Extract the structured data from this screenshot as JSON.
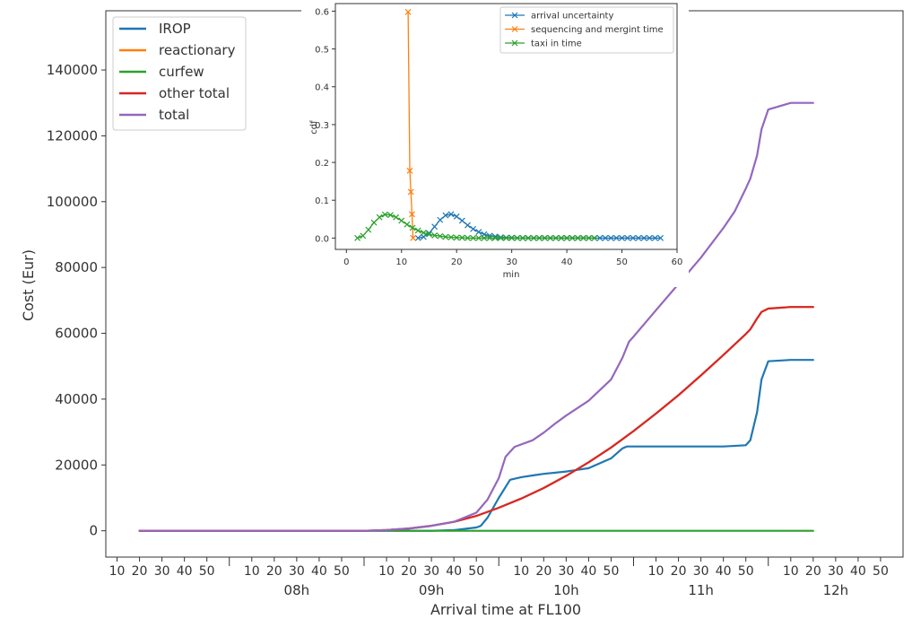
{
  "chart_data": [
    {
      "type": "line",
      "xlabel": "Arrival time at FL100",
      "ylabel": "Cost (Eur)",
      "x_unit": "minutes",
      "xlim": [
        425,
        780
      ],
      "ylim": [
        -8000,
        158000
      ],
      "grid": false,
      "legend_position": "top-left",
      "yticks": [
        0,
        20000,
        40000,
        60000,
        80000,
        100000,
        120000,
        140000
      ],
      "ytick_labels": [
        "0",
        "20000",
        "40000",
        "60000",
        "80000",
        "100000",
        "120000",
        "140000"
      ],
      "minor_ticks": [
        430,
        440,
        450,
        460,
        470,
        490,
        500,
        510,
        520,
        530,
        550,
        560,
        570,
        580,
        590,
        610,
        620,
        630,
        640,
        650,
        670,
        680,
        690,
        700,
        710,
        730,
        740,
        750,
        760,
        770
      ],
      "minor_tick_labels": [
        "10",
        "20",
        "30",
        "40",
        "50",
        "10",
        "20",
        "30",
        "40",
        "50",
        "10",
        "20",
        "30",
        "40",
        "50",
        "10",
        "20",
        "30",
        "40",
        "50",
        "10",
        "20",
        "30",
        "40",
        "50",
        "10",
        "20",
        "30",
        "40",
        "50"
      ],
      "major_ticks": [
        480,
        540,
        600,
        660,
        720
      ],
      "major_tick_labels": [
        "08h",
        "09h",
        "10h",
        "11h",
        "12h"
      ],
      "series": [
        {
          "name": "IROP",
          "color": "#1f77b4",
          "x": [
            440,
            540,
            570,
            580,
            590,
            592,
            595,
            600,
            605,
            610,
            615,
            620,
            630,
            640,
            650,
            655,
            657,
            660,
            680,
            700,
            710,
            712,
            715,
            717,
            720,
            730,
            740
          ],
          "y": [
            0,
            0,
            0,
            200,
            1000,
            1500,
            4000,
            10000,
            15500,
            16300,
            16800,
            17300,
            18000,
            19000,
            22000,
            25000,
            25600,
            25600,
            25600,
            25600,
            26000,
            27500,
            36000,
            46000,
            51500,
            51900,
            51900
          ]
        },
        {
          "name": "reactionary",
          "color": "#ff7f0e",
          "x": [
            440,
            540,
            550,
            560,
            570,
            580,
            590,
            600,
            610,
            620,
            630,
            640,
            650,
            660,
            670,
            680,
            690,
            700,
            710,
            712,
            715,
            717,
            720,
            730,
            740
          ],
          "y": [
            0,
            0,
            200,
            700,
            1500,
            2700,
            4500,
            7000,
            9800,
            13000,
            16700,
            20800,
            25300,
            30300,
            35600,
            41200,
            47200,
            53400,
            59800,
            61200,
            64500,
            66500,
            67500,
            68000,
            68000
          ]
        },
        {
          "name": "curfew",
          "color": "#2ca02c",
          "x": [
            440,
            740
          ],
          "y": [
            0,
            0
          ]
        },
        {
          "name": "other total",
          "color": "#d62728",
          "x": [
            440,
            540,
            550,
            560,
            570,
            580,
            590,
            600,
            610,
            620,
            630,
            640,
            650,
            660,
            670,
            680,
            690,
            700,
            710,
            712,
            715,
            717,
            720,
            730,
            740
          ],
          "y": [
            0,
            0,
            200,
            700,
            1500,
            2700,
            4500,
            7000,
            9800,
            13000,
            16700,
            20800,
            25300,
            30300,
            35600,
            41200,
            47200,
            53400,
            59800,
            61200,
            64500,
            66500,
            67500,
            68000,
            68000
          ]
        },
        {
          "name": "total",
          "color": "#9467bd",
          "x": [
            440,
            540,
            550,
            560,
            570,
            580,
            590,
            595,
            600,
            603,
            607,
            615,
            620,
            625,
            630,
            640,
            650,
            655,
            658,
            660,
            670,
            680,
            690,
            700,
            705,
            710,
            712,
            715,
            717,
            720,
            730,
            740
          ],
          "y": [
            0,
            0,
            200,
            700,
            1500,
            2700,
            5500,
            9500,
            16000,
            22500,
            25500,
            27500,
            29800,
            32500,
            35000,
            39500,
            46000,
            52500,
            57500,
            59000,
            67000,
            75000,
            83000,
            92000,
            97000,
            104000,
            107000,
            114000,
            122000,
            128000,
            130000,
            130000
          ]
        }
      ]
    },
    {
      "type": "line",
      "xlabel": "min",
      "ylabel": "cdf",
      "xlim": [
        -2,
        60
      ],
      "ylim": [
        -0.03,
        0.62
      ],
      "grid": false,
      "legend_position": "top-right",
      "xticks": [
        0,
        10,
        20,
        30,
        40,
        50,
        60
      ],
      "xtick_labels": [
        "0",
        "10",
        "20",
        "30",
        "40",
        "50",
        "60"
      ],
      "yticks": [
        0.0,
        0.1,
        0.2,
        0.3,
        0.4,
        0.5,
        0.6
      ],
      "ytick_labels": [
        "0.0",
        "0.1",
        "0.2",
        "0.3",
        "0.4",
        "0.5",
        "0.6"
      ],
      "series": [
        {
          "name": "arrival uncertainty",
          "color": "#1f77b4",
          "marker": "x",
          "x": [
            13,
            14,
            15,
            16,
            17,
            18,
            19,
            20,
            21,
            22,
            23,
            24,
            25,
            26,
            27,
            28,
            29,
            30,
            31,
            32,
            33,
            34,
            35,
            36,
            37,
            38,
            39,
            40,
            41,
            42,
            43,
            44,
            45,
            46,
            47,
            48,
            49,
            50,
            51,
            52,
            53,
            54,
            55,
            56,
            57
          ],
          "y": [
            0.0,
            0.003,
            0.013,
            0.03,
            0.048,
            0.06,
            0.063,
            0.057,
            0.046,
            0.034,
            0.024,
            0.016,
            0.01,
            0.006,
            0.004,
            0.002,
            0.001,
            0.001,
            0.0,
            0.0,
            0.0,
            0.0,
            0.0,
            0.0,
            0.0,
            0.0,
            0.0,
            0.0,
            0.0,
            0.0,
            0.0,
            0.0,
            0.0,
            0.0,
            0.0,
            0.0,
            0.0,
            0.0,
            0.0,
            0.0,
            0.0,
            0.0,
            0.0,
            0.0,
            0.0
          ]
        },
        {
          "name": "sequencing and mergint time",
          "color": "#ff7f0e",
          "marker": "x",
          "x": [
            11.2,
            11.5,
            11.7,
            11.9,
            12.1
          ],
          "y": [
            0.598,
            0.178,
            0.122,
            0.063,
            0.0
          ]
        },
        {
          "name": "taxi in time",
          "color": "#2ca02c",
          "marker": "x",
          "x": [
            2,
            3,
            4,
            5,
            6,
            7,
            8,
            9,
            10,
            11,
            12,
            13,
            14,
            15,
            16,
            17,
            18,
            19,
            20,
            21,
            22,
            23,
            24,
            25,
            26,
            27,
            28,
            29,
            30,
            31,
            32,
            33,
            34,
            35,
            36,
            37,
            38,
            39,
            40,
            41,
            42,
            43,
            44,
            45
          ],
          "y": [
            0.0,
            0.006,
            0.022,
            0.041,
            0.055,
            0.062,
            0.061,
            0.055,
            0.046,
            0.036,
            0.027,
            0.02,
            0.014,
            0.01,
            0.007,
            0.005,
            0.003,
            0.002,
            0.001,
            0.001,
            0.0,
            0.0,
            0.0,
            0.0,
            0.0,
            0.0,
            0.0,
            0.0,
            0.0,
            0.0,
            0.0,
            0.0,
            0.0,
            0.0,
            0.0,
            0.0,
            0.0,
            0.0,
            0.0,
            0.0,
            0.0,
            0.0,
            0.0,
            0.0
          ]
        }
      ]
    }
  ]
}
